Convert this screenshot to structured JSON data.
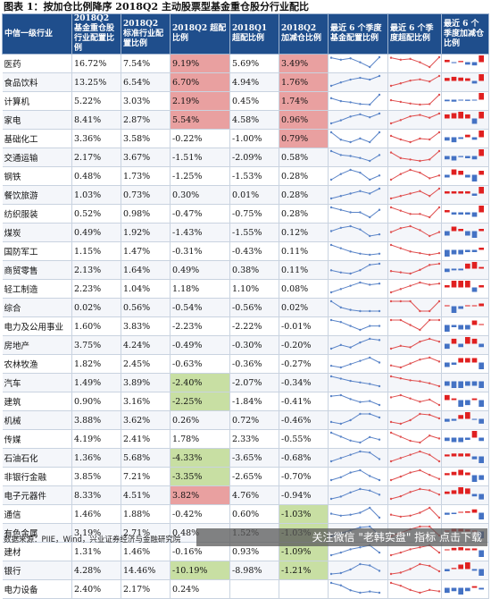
{
  "title": "图表 1：按加仓比例降序 2018Q2 主动股票型基金重仓股分行业配比",
  "headers": [
    "中信一级行业",
    "2018Q2 基金重仓股行业配置比例",
    "2018Q2 标准行业配置比例",
    "2018Q2 超配比例",
    "2018Q1 超配比例",
    "2018Q2 加减仓比例",
    "最近 6 个季度基金配置比例",
    "最近 6 个季度超配比例",
    "最近 6 个季度加减仓比例"
  ],
  "colors": {
    "header_bg": "#1f4e8c",
    "highlight_red": "#e9a0a0",
    "highlight_green": "#c8dfa3",
    "spark_line": "#5b85c8",
    "spark_line2": "#e05050",
    "bar_pos": "#e02020",
    "bar_neg": "#4472c4"
  },
  "rows": [
    {
      "industry": "医药",
      "fund": "16.72%",
      "std": "7.54%",
      "over2": "9.19%",
      "over1": "5.69%",
      "chg": "3.49%",
      "hl_over2": "red",
      "hl_chg": "red",
      "s1": [
        16.5,
        15.8,
        16.3,
        14.9,
        13.2,
        16.7
      ],
      "s2": [
        9.0,
        8.3,
        8.6,
        7.4,
        5.7,
        9.2
      ],
      "s3": [
        1.2,
        -0.5,
        0.6,
        -1.3,
        -1.7,
        3.5
      ]
    },
    {
      "industry": "食品饮料",
      "fund": "13.25%",
      "std": "6.54%",
      "over2": "6.70%",
      "over1": "4.94%",
      "chg": "1.76%",
      "hl_over2": "red",
      "hl_chg": "red",
      "s1": [
        9.5,
        10.8,
        11.9,
        12.6,
        11.9,
        13.3
      ],
      "s2": [
        3.5,
        4.3,
        5.2,
        5.6,
        4.9,
        6.7
      ],
      "s3": [
        0.8,
        1.1,
        0.9,
        0.7,
        -0.7,
        1.8
      ]
    },
    {
      "industry": "计算机",
      "fund": "5.22%",
      "std": "3.03%",
      "over2": "2.19%",
      "over1": "0.45%",
      "chg": "1.74%",
      "hl_over2": "red",
      "hl_chg": "red",
      "s1": [
        4.6,
        4.1,
        3.9,
        3.6,
        3.5,
        5.2
      ],
      "s2": [
        1.2,
        0.9,
        0.6,
        0.4,
        0.5,
        2.2
      ],
      "s3": [
        -0.4,
        -0.5,
        -0.2,
        -0.3,
        -0.1,
        1.7
      ]
    },
    {
      "industry": "家电",
      "fund": "8.41%",
      "std": "2.87%",
      "over2": "5.54%",
      "over1": "4.58%",
      "chg": "0.96%",
      "hl_over2": "red",
      "hl_chg": "red",
      "s1": [
        5.8,
        6.6,
        7.6,
        8.2,
        7.4,
        8.4
      ],
      "s2": [
        3.4,
        4.1,
        4.9,
        5.2,
        4.6,
        5.5
      ],
      "s3": [
        0.6,
        0.8,
        1.0,
        0.6,
        -0.8,
        1.0
      ]
    },
    {
      "industry": "基础化工",
      "fund": "3.36%",
      "std": "3.58%",
      "over2": "-0.22%",
      "over1": "-1.00%",
      "chg": "0.79%",
      "hl_over2": "",
      "hl_chg": "red",
      "s1": [
        3.4,
        2.8,
        2.6,
        2.9,
        2.6,
        3.4
      ],
      "s2": [
        -0.6,
        -1.0,
        -1.3,
        -0.9,
        -1.0,
        -0.2
      ],
      "s3": [
        -0.4,
        -0.6,
        -0.2,
        0.3,
        -0.3,
        0.8
      ]
    },
    {
      "industry": "交通运输",
      "fund": "2.17%",
      "std": "3.67%",
      "over2": "-1.51%",
      "over1": "-2.09%",
      "chg": "0.58%",
      "hl_over2": "",
      "hl_chg": "",
      "s1": [
        2.6,
        2.2,
        2.1,
        1.9,
        1.6,
        2.2
      ],
      "s2": [
        -1.6,
        -2.0,
        -2.1,
        -2.2,
        -2.1,
        -1.5
      ],
      "s3": [
        -0.3,
        -0.4,
        -0.1,
        -0.2,
        -0.3,
        0.6
      ]
    },
    {
      "industry": "钢铁",
      "fund": "0.48%",
      "std": "1.73%",
      "over2": "-1.25%",
      "over1": "-1.53%",
      "chg": "0.28%",
      "hl_over2": "",
      "hl_chg": "",
      "s1": [
        0.2,
        0.6,
        0.9,
        0.7,
        0.2,
        0.5
      ],
      "s2": [
        -1.6,
        -1.2,
        -0.9,
        -1.1,
        -1.5,
        -1.3
      ],
      "s3": [
        -0.2,
        0.4,
        0.3,
        -0.2,
        -0.5,
        0.3
      ]
    },
    {
      "industry": "餐饮旅游",
      "fund": "1.03%",
      "std": "0.73%",
      "over2": "0.30%",
      "over1": "0.01%",
      "chg": "0.28%",
      "hl_over2": "",
      "hl_chg": "",
      "s1": [
        0.6,
        0.7,
        0.8,
        0.9,
        0.8,
        1.0
      ],
      "s2": [
        -0.1,
        0.0,
        0.1,
        0.2,
        0.0,
        0.3
      ],
      "s3": [
        0.1,
        0.1,
        0.1,
        0.1,
        -0.1,
        0.3
      ]
    },
    {
      "industry": "纺织服装",
      "fund": "0.52%",
      "std": "0.98%",
      "over2": "-0.47%",
      "over1": "-0.75%",
      "chg": "0.28%",
      "hl_over2": "",
      "hl_chg": "",
      "s1": [
        0.6,
        0.5,
        0.4,
        0.4,
        0.2,
        0.5
      ],
      "s2": [
        -0.5,
        -0.6,
        -0.7,
        -0.7,
        -0.8,
        -0.5
      ],
      "s3": [
        0.1,
        -0.1,
        -0.1,
        -0.1,
        -0.2,
        0.3
      ]
    },
    {
      "industry": "煤炭",
      "fund": "0.49%",
      "std": "1.92%",
      "over2": "-1.43%",
      "over1": "-1.55%",
      "chg": "0.12%",
      "hl_over2": "",
      "hl_chg": "",
      "s1": [
        0.7,
        0.9,
        1.0,
        0.8,
        0.4,
        0.5
      ],
      "s2": [
        -1.4,
        -1.2,
        -1.1,
        -1.3,
        -1.6,
        -1.4
      ],
      "s3": [
        -0.2,
        0.2,
        0.1,
        -0.2,
        -0.3,
        0.1
      ]
    },
    {
      "industry": "国防军工",
      "fund": "1.15%",
      "std": "1.47%",
      "over2": "-0.31%",
      "over1": "-0.43%",
      "chg": "0.11%",
      "hl_over2": "",
      "hl_chg": "",
      "s1": [
        2.0,
        1.7,
        1.4,
        1.2,
        1.1,
        1.2
      ],
      "s2": [
        0.2,
        0.0,
        -0.2,
        -0.3,
        -0.4,
        -0.3
      ],
      "s3": [
        -0.3,
        -0.2,
        -0.2,
        -0.1,
        -0.1,
        0.1
      ]
    },
    {
      "industry": "商贸零售",
      "fund": "2.13%",
      "std": "1.64%",
      "over2": "0.49%",
      "over1": "0.38%",
      "chg": "0.11%",
      "hl_over2": "",
      "hl_chg": "",
      "s1": [
        1.5,
        1.3,
        1.2,
        1.5,
        2.0,
        2.1
      ],
      "s2": [
        -0.1,
        -0.2,
        -0.3,
        0.0,
        0.4,
        0.5
      ],
      "s3": [
        -0.2,
        -0.1,
        -0.1,
        0.3,
        0.4,
        0.1
      ]
    },
    {
      "industry": "轻工制造",
      "fund": "2.23%",
      "std": "1.04%",
      "over2": "1.18%",
      "over1": "1.10%",
      "chg": "0.08%",
      "hl_over2": "",
      "hl_chg": "",
      "s1": [
        1.4,
        1.7,
        2.0,
        2.3,
        2.1,
        2.2
      ],
      "s2": [
        0.4,
        0.7,
        1.0,
        1.3,
        1.1,
        1.2
      ],
      "s3": [
        0.1,
        0.3,
        0.3,
        0.3,
        -0.2,
        0.1
      ]
    },
    {
      "industry": "综合",
      "fund": "0.02%",
      "std": "0.56%",
      "over2": "-0.54%",
      "over1": "-0.56%",
      "chg": "0.02%",
      "hl_over2": "",
      "hl_chg": "",
      "s1": [
        0.1,
        0.05,
        0.03,
        0.02,
        0.02,
        0.02
      ],
      "s2": [
        -0.5,
        -0.5,
        -0.5,
        -0.6,
        -0.6,
        -0.5
      ],
      "s3": [
        0.0,
        -0.05,
        -0.02,
        0.0,
        0.0,
        0.02
      ]
    },
    {
      "industry": "电力及公用事业",
      "fund": "1.60%",
      "std": "3.83%",
      "over2": "-2.23%",
      "over1": "-2.22%",
      "chg": "-0.01%",
      "hl_over2": "",
      "hl_chg": "",
      "s1": [
        1.9,
        1.8,
        1.6,
        1.4,
        1.6,
        1.6
      ],
      "s2": [
        -2.2,
        -2.2,
        -2.3,
        -2.4,
        -2.2,
        -2.2
      ],
      "s3": [
        -0.3,
        -0.1,
        -0.2,
        -0.2,
        0.2,
        0.0
      ]
    },
    {
      "industry": "房地产",
      "fund": "3.75%",
      "std": "4.24%",
      "over2": "-0.49%",
      "over1": "-0.30%",
      "chg": "-0.20%",
      "hl_over2": "",
      "hl_chg": "",
      "s1": [
        3.1,
        3.4,
        3.2,
        3.6,
        3.9,
        3.8
      ],
      "s2": [
        -1.0,
        -0.8,
        -0.9,
        -0.5,
        -0.3,
        -0.5
      ],
      "s3": [
        -0.3,
        0.3,
        -0.2,
        0.4,
        0.3,
        -0.2
      ]
    },
    {
      "industry": "农林牧渔",
      "fund": "1.82%",
      "std": "2.45%",
      "over2": "-0.63%",
      "over1": "-0.36%",
      "chg": "-0.27%",
      "hl_over2": "",
      "hl_chg": "",
      "s1": [
        1.6,
        1.5,
        1.7,
        1.9,
        2.1,
        1.8
      ],
      "s2": [
        -0.8,
        -0.9,
        -0.7,
        -0.5,
        -0.4,
        -0.6
      ],
      "s3": [
        -0.2,
        -0.1,
        0.2,
        0.2,
        0.2,
        -0.3
      ]
    },
    {
      "industry": "汽车",
      "fund": "1.49%",
      "std": "3.89%",
      "over2": "-2.40%",
      "over1": "-2.07%",
      "chg": "-0.34%",
      "hl_over2": "green",
      "hl_chg": "",
      "s1": [
        2.8,
        2.5,
        2.2,
        2.0,
        1.8,
        1.5
      ],
      "s2": [
        -1.4,
        -1.6,
        -1.8,
        -1.9,
        -2.1,
        -2.4
      ],
      "s3": [
        -0.2,
        -0.3,
        -0.3,
        -0.2,
        -0.2,
        -0.3
      ]
    },
    {
      "industry": "建筑",
      "fund": "0.90%",
      "std": "3.16%",
      "over2": "-2.25%",
      "over1": "-1.84%",
      "chg": "-0.41%",
      "hl_over2": "green",
      "hl_chg": "",
      "s1": [
        1.8,
        1.9,
        1.5,
        1.2,
        1.3,
        0.9
      ],
      "s2": [
        -1.6,
        -1.4,
        -1.7,
        -2.0,
        -1.8,
        -2.3
      ],
      "s3": [
        0.3,
        0.1,
        -0.4,
        -0.3,
        0.1,
        -0.4
      ]
    },
    {
      "industry": "机械",
      "fund": "3.88%",
      "std": "3.62%",
      "over2": "0.26%",
      "over1": "0.72%",
      "chg": "-0.46%",
      "hl_over2": "",
      "hl_chg": "",
      "s1": [
        3.4,
        3.2,
        3.6,
        4.3,
        4.3,
        3.9
      ],
      "s2": [
        -0.1,
        -0.3,
        0.1,
        0.8,
        0.7,
        0.3
      ],
      "s3": [
        -0.3,
        -0.2,
        0.4,
        0.7,
        -0.1,
        -0.5
      ]
    },
    {
      "industry": "传媒",
      "fund": "4.19%",
      "std": "2.41%",
      "over2": "1.78%",
      "over1": "2.33%",
      "chg": "-0.55%",
      "hl_over2": "",
      "hl_chg": "",
      "s1": [
        5.6,
        4.8,
        4.0,
        3.6,
        4.7,
        4.2
      ],
      "s2": [
        2.8,
        2.1,
        1.4,
        1.1,
        2.3,
        1.8
      ],
      "s3": [
        -0.6,
        -0.8,
        -0.8,
        -0.4,
        1.2,
        -0.6
      ]
    },
    {
      "industry": "石油石化",
      "fund": "1.36%",
      "std": "5.68%",
      "over2": "-4.33%",
      "over1": "-3.65%",
      "chg": "-0.68%",
      "hl_over2": "green",
      "hl_chg": "",
      "s1": [
        1.2,
        1.5,
        1.8,
        2.1,
        2.0,
        1.4
      ],
      "s2": [
        -4.3,
        -4.0,
        -3.7,
        -3.4,
        -3.7,
        -4.3
      ],
      "s3": [
        0.2,
        0.3,
        0.3,
        0.3,
        -0.3,
        -0.7
      ]
    },
    {
      "industry": "非银行金融",
      "fund": "3.85%",
      "std": "7.21%",
      "over2": "-3.35%",
      "over1": "-2.65%",
      "chg": "-0.70%",
      "hl_over2": "green",
      "hl_chg": "",
      "s1": [
        3.9,
        4.4,
        5.2,
        5.6,
        4.6,
        3.9
      ],
      "s2": [
        -3.6,
        -3.0,
        -2.3,
        -1.9,
        -2.7,
        -3.4
      ],
      "s3": [
        0.3,
        0.5,
        0.8,
        0.4,
        -1.0,
        -0.7
      ]
    },
    {
      "industry": "电子元器件",
      "fund": "8.33%",
      "std": "4.51%",
      "over2": "3.82%",
      "over1": "4.76%",
      "chg": "-0.94%",
      "hl_over2": "red",
      "hl_chg": "",
      "s1": [
        7.2,
        7.8,
        8.9,
        9.8,
        9.4,
        8.3
      ],
      "s2": [
        2.8,
        3.4,
        4.4,
        5.1,
        4.8,
        3.8
      ],
      "s3": [
        0.4,
        0.6,
        1.1,
        0.9,
        -0.4,
        -0.9
      ]
    },
    {
      "industry": "通信",
      "fund": "1.46%",
      "std": "1.88%",
      "over2": "-0.42%",
      "over1": "0.60%",
      "chg": "-1.03%",
      "hl_over2": "",
      "hl_chg": "green",
      "s1": [
        1.9,
        1.7,
        1.8,
        2.0,
        2.5,
        1.5
      ],
      "s2": [
        -0.1,
        -0.3,
        -0.2,
        0.1,
        0.6,
        -0.4
      ],
      "s3": [
        -0.3,
        -0.2,
        0.1,
        0.2,
        0.5,
        -1.0
      ]
    },
    {
      "industry": "有色金属",
      "fund": "3.19%",
      "std": "2.71%",
      "over2": "0.48%",
      "over1": "1.52%",
      "chg": "-1.03%",
      "hl_over2": "",
      "hl_chg": "green",
      "s1": [
        3.0,
        3.4,
        3.8,
        4.2,
        4.3,
        3.2
      ],
      "s2": [
        0.4,
        0.8,
        1.2,
        1.5,
        1.5,
        0.5
      ],
      "s3": [
        0.1,
        0.4,
        0.4,
        0.3,
        0.0,
        -1.0
      ]
    },
    {
      "industry": "建材",
      "fund": "1.31%",
      "std": "1.46%",
      "over2": "-0.16%",
      "over1": "0.93%",
      "chg": "-1.09%",
      "hl_over2": "",
      "hl_chg": "green",
      "s1": [
        0.9,
        1.3,
        1.8,
        2.1,
        2.4,
        1.3
      ],
      "s2": [
        -0.6,
        -0.2,
        0.3,
        0.6,
        0.9,
        -0.2
      ],
      "s3": [
        0.1,
        0.4,
        0.5,
        0.3,
        0.3,
        -1.1
      ]
    },
    {
      "industry": "银行",
      "fund": "4.28%",
      "std": "14.46%",
      "over2": "-10.19%",
      "over1": "-8.98%",
      "chg": "-1.21%",
      "hl_over2": "green",
      "hl_chg": "green",
      "s1": [
        3.6,
        3.8,
        4.6,
        5.8,
        5.5,
        4.3
      ],
      "s2": [
        -10.8,
        -10.5,
        -9.7,
        -8.6,
        -9.0,
        -10.2
      ],
      "s3": [
        -0.4,
        0.2,
        0.8,
        1.2,
        -0.3,
        -1.2
      ]
    },
    {
      "industry": "电力设备",
      "fund": "2.40%",
      "std": "2.17%",
      "over2": "0.24%",
      "over1": "",
      "chg": "",
      "hl_over2": "",
      "hl_chg": "",
      "s1": [
        3.2,
        3.0,
        2.6,
        2.4,
        2.5,
        2.4
      ],
      "s2": [
        0.8,
        0.6,
        0.3,
        0.1,
        0.3,
        0.2
      ],
      "s3": [
        -0.3,
        -0.2,
        -0.4,
        -0.2,
        0.1,
        -0.1
      ]
    }
  ],
  "footer": "数据来源：PIIE，Wind，兴业证券经济与金融研究院",
  "watermark": "关注微信 \"老韩实盘\" 指标 点击下载"
}
